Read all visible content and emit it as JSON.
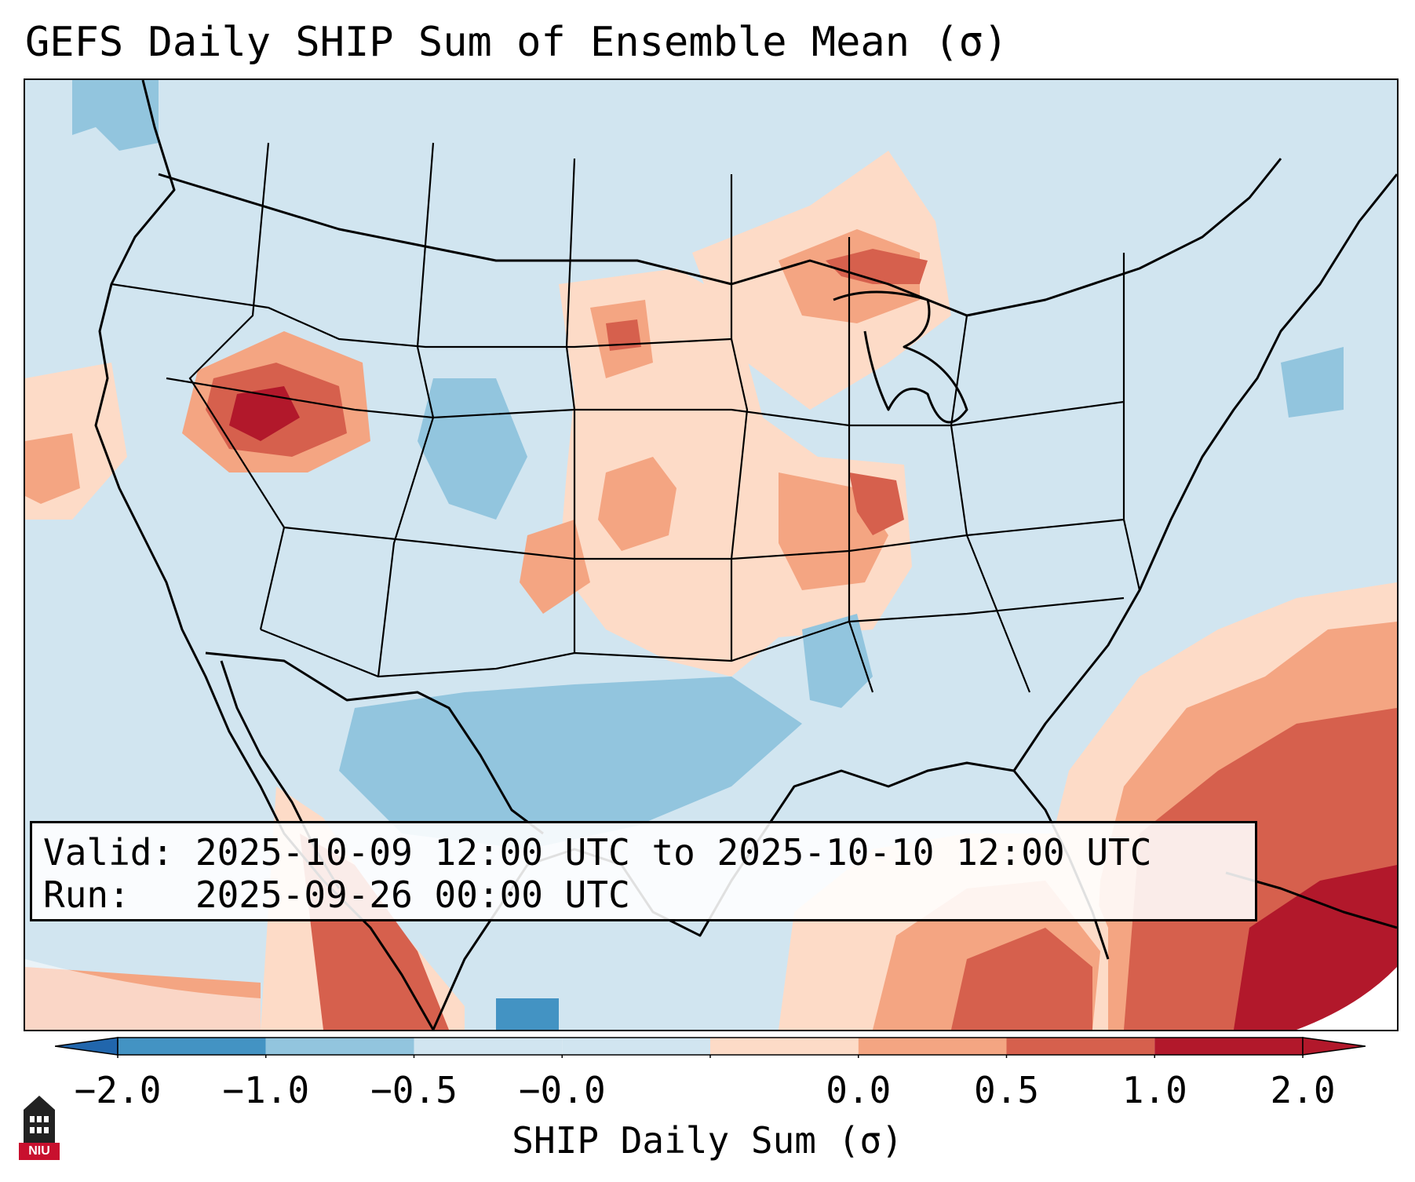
{
  "title": "GEFS Daily SHIP Sum of Ensemble Mean (σ)",
  "info": {
    "valid_label": "Valid:",
    "valid_value": "2025-10-09 12:00 UTC to 2025-10-10 12:00 UTC",
    "run_label": "Run:",
    "run_value": "2025-09-26 00:00 UTC"
  },
  "colorbar": {
    "label": "SHIP Daily Sum (σ)",
    "ticks": [
      "−2.0",
      "−1.0",
      "−0.5",
      "−0.0",
      "0.0",
      "0.5",
      "1.0",
      "2.0"
    ],
    "colors": [
      "#4393c3",
      "#92c5de",
      "#d1e5f0",
      "#d1e5f0",
      "#fddbc7",
      "#f4a582",
      "#d6604d",
      "#b2182b"
    ],
    "under_color": "#2166ac",
    "over_color": "#b2182b"
  },
  "logo": {
    "text": "NIU"
  },
  "palette": {
    "background": "#d1e5f0",
    "light_blue": "#92c5de",
    "blue": "#4393c3",
    "light_red": "#fddbc7",
    "salmon": "#f4a582",
    "red": "#d6604d",
    "dark_red": "#b2182b"
  }
}
